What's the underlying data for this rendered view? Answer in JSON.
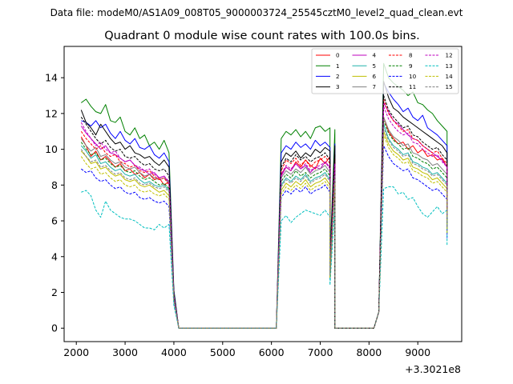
{
  "chart_data": {
    "type": "line",
    "suptitle": "Data file: modeM0/AS1A09_008T05_9000003724_25545cztM0_level2_quad_clean.evt",
    "title": "Quadrant 0 module wise count rates with 100.0s bins.",
    "xlabel": "",
    "ylabel": "",
    "x_offset_label": "+3.3021e8",
    "xlim": [
      1750,
      9900
    ],
    "ylim": [
      -0.75,
      15.75
    ],
    "x_ticks": [
      2000,
      3000,
      4000,
      5000,
      6000,
      7000,
      8000,
      9000
    ],
    "x_tick_labels": [
      "2000",
      "3000",
      "4000",
      "5000",
      "6000",
      "7000",
      "8000",
      "9000"
    ],
    "y_ticks": [
      0,
      2,
      4,
      6,
      8,
      10,
      12,
      14
    ],
    "y_tick_labels": [
      "0",
      "2",
      "4",
      "6",
      "8",
      "10",
      "12",
      "14"
    ],
    "legend_position": "upper right",
    "legend_columns": 4,
    "x_start": 2100,
    "bin_width": 100,
    "series": [
      {
        "name": "0",
        "color": "#ff0000",
        "style": "solid",
        "seg1": [
          10.7,
          10.2,
          9.6,
          9.9,
          9.4,
          9.6,
          9.3,
          9.0,
          9.2,
          8.8,
          8.9,
          8.6,
          8.7,
          8.4,
          8.6,
          8.3,
          8.4,
          8.0,
          8.2
        ],
        "seg2": [
          8.6,
          9.0,
          8.8,
          9.3,
          9.0,
          9.4,
          9.1,
          8.9,
          9.5,
          9.2,
          9.6,
          9.3
        ],
        "seg3": [
          11.8,
          11.0,
          10.6,
          10.3,
          10.4,
          10.0,
          10.2,
          9.8,
          10.0,
          9.6,
          9.7,
          9.4,
          9.5,
          9.0
        ]
      },
      {
        "name": "1",
        "color": "#008000",
        "style": "solid",
        "seg1": [
          12.6,
          12.8,
          12.4,
          12.1,
          12.0,
          12.5,
          11.6,
          11.5,
          11.8,
          11.0,
          10.8,
          11.2,
          10.6,
          10.8,
          10.2,
          10.4,
          10.0,
          10.5,
          9.8
        ],
        "seg2": [
          10.6,
          11.0,
          10.8,
          11.1,
          10.7,
          11.0,
          10.6,
          11.2,
          11.3,
          11.0,
          11.2,
          11.1
        ],
        "seg3": [
          14.8,
          14.0,
          13.7,
          13.5,
          13.3,
          13.0,
          13.2,
          12.6,
          12.5,
          12.2,
          12.0,
          11.6,
          11.3,
          11.0
        ]
      },
      {
        "name": "2",
        "color": "#0000ff",
        "style": "solid",
        "seg1": [
          11.6,
          11.5,
          11.3,
          11.6,
          11.2,
          11.4,
          10.9,
          10.6,
          11.0,
          10.5,
          10.3,
          10.6,
          10.1,
          10.0,
          10.2,
          9.7,
          9.5,
          9.8,
          9.3
        ],
        "seg2": [
          9.8,
          10.2,
          10.0,
          10.4,
          10.1,
          10.3,
          10.0,
          10.5,
          10.2,
          10.4,
          10.1,
          10.3
        ],
        "seg3": [
          13.7,
          13.2,
          12.8,
          12.5,
          12.1,
          12.3,
          11.8,
          11.6,
          11.9,
          11.2,
          11.0,
          10.8,
          10.5,
          10.2
        ]
      },
      {
        "name": "3",
        "color": "#000000",
        "style": "solid",
        "seg1": [
          12.2,
          11.5,
          11.2,
          10.8,
          11.4,
          11.0,
          10.6,
          10.3,
          10.4,
          10.0,
          10.2,
          9.8,
          9.7,
          9.5,
          9.6,
          9.3,
          9.1,
          9.4,
          9.0
        ],
        "seg2": [
          9.3,
          9.8,
          9.6,
          9.9,
          9.5,
          9.8,
          9.6,
          10.0,
          9.8,
          10.1,
          9.9,
          10.2
        ],
        "seg3": [
          13.8,
          12.9,
          12.3,
          12.1,
          11.8,
          11.6,
          11.4,
          11.2,
          11.0,
          10.8,
          10.6,
          10.4,
          10.2,
          9.8
        ]
      },
      {
        "name": "4",
        "color": "#bf00bf",
        "style": "solid",
        "seg1": [
          11.3,
          10.9,
          10.6,
          10.3,
          10.0,
          10.2,
          9.8,
          9.7,
          9.5,
          9.3,
          9.4,
          9.1,
          8.9,
          8.8,
          8.6,
          8.7,
          8.4,
          8.5,
          8.1
        ],
        "seg2": [
          8.5,
          9.0,
          8.8,
          9.2,
          8.9,
          9.1,
          8.7,
          9.0,
          8.9,
          9.3,
          9.0,
          9.2
        ],
        "seg3": [
          12.6,
          12.1,
          11.6,
          11.4,
          11.1,
          10.8,
          10.6,
          10.5,
          10.2,
          10.0,
          9.8,
          9.6,
          9.4,
          9.0
        ]
      },
      {
        "name": "5",
        "color": "#20b2aa",
        "style": "solid",
        "seg1": [
          10.2,
          9.9,
          9.5,
          9.7,
          9.2,
          9.3,
          9.0,
          8.8,
          8.9,
          8.6,
          8.5,
          8.6,
          8.3,
          8.1,
          8.2,
          8.0,
          7.9,
          8.0,
          7.7
        ],
        "seg2": [
          8.0,
          8.4,
          8.2,
          8.5,
          8.3,
          8.6,
          8.2,
          8.4,
          8.5,
          8.7,
          8.3,
          8.6
        ],
        "seg3": [
          11.4,
          10.6,
          10.2,
          10.0,
          9.7,
          9.8,
          9.3,
          9.2,
          9.0,
          8.9,
          8.6,
          8.7,
          8.4,
          8.1
        ]
      },
      {
        "name": "6",
        "color": "#bfbf00",
        "style": "solid",
        "seg1": [
          9.9,
          9.6,
          9.2,
          9.3,
          8.9,
          9.0,
          8.7,
          8.5,
          8.6,
          8.3,
          8.2,
          8.3,
          8.0,
          7.9,
          8.0,
          7.8,
          7.6,
          7.7,
          7.4
        ],
        "seg2": [
          7.7,
          8.1,
          7.9,
          8.2,
          8.0,
          8.3,
          7.9,
          8.1,
          8.2,
          8.4,
          8.0,
          8.3
        ],
        "seg3": [
          11.0,
          10.3,
          9.9,
          9.7,
          9.4,
          9.5,
          9.0,
          8.9,
          8.7,
          8.6,
          8.3,
          8.4,
          8.1,
          7.8
        ]
      },
      {
        "name": "7",
        "color": "#808080",
        "style": "solid",
        "seg1": [
          10.6,
          10.2,
          9.9,
          10.1,
          9.6,
          9.7,
          9.4,
          9.2,
          9.3,
          9.0,
          8.9,
          9.0,
          8.7,
          8.5,
          8.6,
          8.4,
          8.3,
          8.4,
          8.1
        ],
        "seg2": [
          8.4,
          8.8,
          8.6,
          8.9,
          8.7,
          9.0,
          8.6,
          8.8,
          8.9,
          9.1,
          8.7,
          9.0
        ],
        "seg3": [
          11.8,
          11.1,
          10.7,
          10.5,
          10.2,
          10.3,
          9.8,
          9.7,
          9.5,
          9.4,
          9.1,
          9.2,
          8.9,
          8.6
        ]
      },
      {
        "name": "8",
        "color": "#ff0000",
        "style": "dashed",
        "seg1": [
          11.0,
          10.6,
          10.3,
          10.0,
          10.2,
          9.8,
          9.6,
          9.7,
          9.3,
          9.2,
          9.0,
          9.1,
          8.8,
          8.7,
          8.8,
          8.5,
          8.3,
          8.4,
          8.0
        ],
        "seg2": [
          8.8,
          9.4,
          9.2,
          9.5,
          9.1,
          9.4,
          9.0,
          9.3,
          9.4,
          9.6,
          9.2,
          9.5
        ],
        "seg3": [
          12.8,
          12.0,
          11.6,
          11.3,
          11.0,
          11.1,
          10.6,
          10.5,
          10.2,
          10.0,
          9.8,
          9.9,
          9.5,
          9.2
        ]
      },
      {
        "name": "9",
        "color": "#008000",
        "style": "dashed",
        "seg1": [
          10.4,
          10.0,
          9.7,
          9.8,
          9.4,
          9.5,
          9.2,
          9.0,
          9.1,
          8.8,
          8.7,
          8.8,
          8.5,
          8.3,
          8.4,
          8.2,
          8.0,
          8.1,
          7.8
        ],
        "seg2": [
          8.2,
          8.6,
          8.4,
          8.8,
          8.5,
          8.7,
          8.4,
          8.6,
          8.7,
          8.9,
          8.5,
          8.8
        ],
        "seg3": [
          11.6,
          10.9,
          10.5,
          10.3,
          10.0,
          10.1,
          9.6,
          9.5,
          9.3,
          9.2,
          8.9,
          9.0,
          8.7,
          8.4
        ]
      },
      {
        "name": "10",
        "color": "#0000ff",
        "style": "dashed",
        "seg1": [
          8.9,
          8.7,
          8.8,
          8.4,
          8.2,
          8.3,
          8.0,
          7.8,
          7.9,
          7.6,
          7.5,
          7.6,
          7.3,
          7.2,
          7.3,
          7.1,
          7.0,
          7.1,
          6.8
        ],
        "seg2": [
          7.3,
          7.7,
          7.5,
          7.8,
          7.6,
          7.9,
          7.5,
          7.7,
          7.8,
          8.0,
          7.6,
          7.9
        ],
        "seg3": [
          10.2,
          9.6,
          9.2,
          9.0,
          8.8,
          8.9,
          8.4,
          8.3,
          8.1,
          7.9,
          7.7,
          7.8,
          7.5,
          7.2
        ]
      },
      {
        "name": "11",
        "color": "#000000",
        "style": "dashed",
        "seg1": [
          11.8,
          11.4,
          11.0,
          10.6,
          10.3,
          10.5,
          10.1,
          9.9,
          10.0,
          9.6,
          9.5,
          9.6,
          9.3,
          9.1,
          9.2,
          8.9,
          8.8,
          8.9,
          8.5
        ],
        "seg2": [
          9.0,
          9.5,
          9.3,
          9.7,
          9.4,
          9.6,
          9.3,
          9.5,
          9.6,
          9.8,
          9.4,
          9.7
        ],
        "seg3": [
          13.0,
          12.2,
          11.8,
          11.5,
          11.2,
          11.3,
          10.8,
          10.7,
          10.4,
          10.2,
          10.0,
          10.1,
          9.7,
          9.4
        ]
      },
      {
        "name": "12",
        "color": "#bf00bf",
        "style": "dashed",
        "seg1": [
          11.5,
          11.0,
          10.6,
          10.2,
          10.4,
          10.0,
          9.8,
          9.9,
          9.5,
          9.3,
          9.4,
          9.1,
          9.0,
          8.8,
          8.9,
          8.6,
          8.4,
          8.5,
          8.2
        ],
        "seg2": [
          8.6,
          9.1,
          8.9,
          9.2,
          8.9,
          9.2,
          8.8,
          9.0,
          9.1,
          9.3,
          8.9,
          9.2
        ],
        "seg3": [
          12.4,
          11.7,
          11.3,
          11.0,
          10.8,
          10.9,
          10.4,
          10.3,
          10.0,
          9.8,
          9.6,
          9.7,
          9.3,
          9.0
        ]
      },
      {
        "name": "13",
        "color": "#00bfbf",
        "style": "dashed",
        "seg1": [
          7.6,
          7.7,
          7.4,
          6.6,
          6.2,
          7.1,
          6.6,
          6.4,
          6.2,
          6.1,
          6.1,
          6.0,
          5.8,
          5.6,
          5.6,
          5.5,
          5.8,
          5.6,
          5.8
        ],
        "seg2": [
          6.0,
          6.3,
          5.9,
          6.2,
          6.4,
          6.6,
          6.5,
          6.4,
          6.3,
          6.6,
          6.2,
          6.9
        ],
        "seg3": [
          7.8,
          7.9,
          7.9,
          7.5,
          7.6,
          7.2,
          7.3,
          6.8,
          6.4,
          6.2,
          6.5,
          6.8,
          6.4,
          6.6
        ]
      },
      {
        "name": "14",
        "color": "#bfbf00",
        "style": "dashed",
        "seg1": [
          9.6,
          9.2,
          8.9,
          9.0,
          8.6,
          8.7,
          8.4,
          8.2,
          8.3,
          8.0,
          7.9,
          8.0,
          7.7,
          7.6,
          7.7,
          7.5,
          7.4,
          7.5,
          7.2
        ],
        "seg2": [
          7.5,
          7.9,
          7.7,
          8.0,
          7.8,
          8.1,
          7.7,
          7.9,
          8.0,
          8.2,
          7.8,
          8.1
        ],
        "seg3": [
          10.8,
          10.1,
          9.7,
          9.5,
          9.2,
          9.3,
          8.8,
          8.7,
          8.5,
          8.4,
          8.1,
          8.2,
          7.9,
          7.6
        ]
      },
      {
        "name": "15",
        "color": "#808080",
        "style": "dashed",
        "seg1": [
          10.0,
          9.6,
          9.3,
          9.4,
          9.0,
          9.1,
          8.8,
          8.6,
          8.7,
          8.4,
          8.3,
          8.4,
          8.1,
          8.0,
          8.1,
          7.9,
          7.8,
          7.9,
          7.6
        ],
        "seg2": [
          7.9,
          8.3,
          8.1,
          8.4,
          8.2,
          8.5,
          8.1,
          8.3,
          8.4,
          8.6,
          8.2,
          8.5
        ],
        "seg3": [
          11.2,
          10.5,
          10.1,
          9.9,
          9.6,
          9.7,
          9.2,
          9.1,
          8.9,
          8.8,
          8.5,
          8.6,
          8.3,
          8.0
        ]
      }
    ]
  }
}
